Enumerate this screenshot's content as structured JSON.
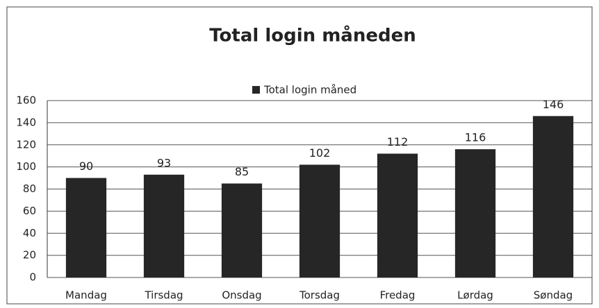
{
  "chart_data": {
    "type": "bar",
    "title": "Total login måneden",
    "categories": [
      "Mandag",
      "Tirsdag",
      "Onsdag",
      "Torsdag",
      "Fredag",
      "Lørdag",
      "Søndag"
    ],
    "series": [
      {
        "name": "Total login måned",
        "color": "#262626",
        "values": [
          90,
          93,
          85,
          102,
          112,
          116,
          146
        ]
      }
    ],
    "ylim": [
      0,
      160
    ],
    "yticks": [
      0,
      20,
      40,
      60,
      80,
      100,
      120,
      140,
      160
    ],
    "grid": true,
    "legend": "top"
  }
}
